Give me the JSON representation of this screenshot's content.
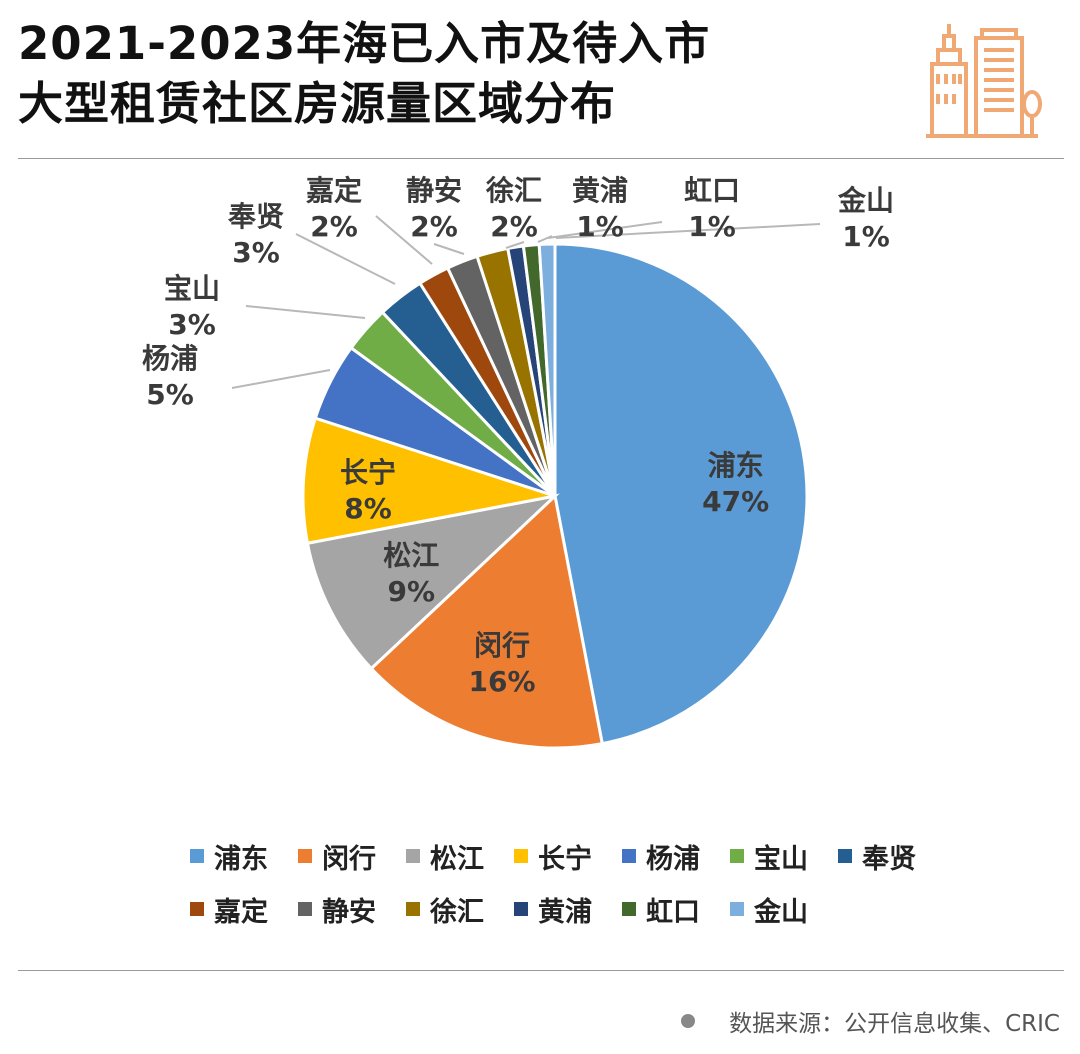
{
  "title": {
    "line1": "2021-2023年海已入市及待入市",
    "line2": "大型租赁社区房源量区域分布"
  },
  "logo_icon": "city-buildings-icon",
  "accent_color": "#F0A875",
  "chart_data": {
    "type": "pie",
    "title": "2021-2023年海已入市及待入市大型租赁社区房源量区域分布",
    "start_angle_deg": 0,
    "direction": "clockwise",
    "slices": [
      {
        "label": "浦东",
        "value": 47,
        "display": "47%",
        "color": "#5B9BD5"
      },
      {
        "label": "闵行",
        "value": 16,
        "display": "16%",
        "color": "#ED7D31"
      },
      {
        "label": "松江",
        "value": 9,
        "display": "9%",
        "color": "#A5A5A5"
      },
      {
        "label": "长宁",
        "value": 8,
        "display": "8%",
        "color": "#FFC000"
      },
      {
        "label": "杨浦",
        "value": 5,
        "display": "5%",
        "color": "#4472C4"
      },
      {
        "label": "宝山",
        "value": 3,
        "display": "3%",
        "color": "#70AD47"
      },
      {
        "label": "奉贤",
        "value": 3,
        "display": "3%",
        "color": "#255E91"
      },
      {
        "label": "嘉定",
        "value": 2,
        "display": "2%",
        "color": "#9E480E"
      },
      {
        "label": "静安",
        "value": 2,
        "display": "2%",
        "color": "#636363"
      },
      {
        "label": "徐汇",
        "value": 2,
        "display": "2%",
        "color": "#997300"
      },
      {
        "label": "黄浦",
        "value": 1,
        "display": "1%",
        "color": "#264478"
      },
      {
        "label": "虹口",
        "value": 1,
        "display": "1%",
        "color": "#43682B"
      },
      {
        "label": "金山",
        "value": 1,
        "display": "1%",
        "color": "#7CAFDD"
      }
    ],
    "legend_placement": "bottom"
  },
  "legend": {
    "rows": [
      [
        "浦东",
        "闵行",
        "松江",
        "长宁",
        "杨浦",
        "宝山",
        "奉贤"
      ],
      [
        "嘉定",
        "静安",
        "徐汇",
        "黄浦",
        "虹口",
        "金山"
      ]
    ]
  },
  "source": {
    "text": "数据来源：公开信息收集、CRIC"
  }
}
